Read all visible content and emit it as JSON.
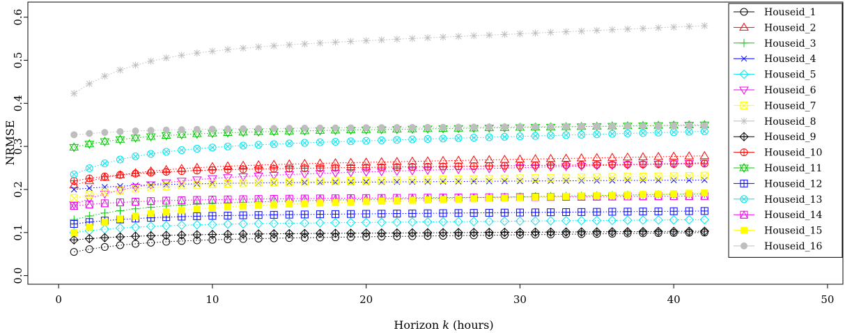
{
  "chart_data": {
    "type": "line",
    "xlabel_prefix": "Horizon ",
    "xlabel_var": "k",
    "xlabel_suffix": " (hours)",
    "ylabel": "NRMSE",
    "xlim": [
      -2,
      51
    ],
    "ylim": [
      -0.02,
      0.635
    ],
    "xticks": [
      0,
      10,
      20,
      30,
      40,
      50
    ],
    "yticks": [
      0.0,
      0.1,
      0.2,
      0.3,
      0.4,
      0.5,
      0.6
    ],
    "ytick_labels": [
      "0.0",
      "0.1",
      "0.2",
      "0.3",
      "0.4",
      "0.5",
      "0.6"
    ],
    "grid": false,
    "legend_position": "top-right",
    "x_start": 1,
    "x_end": 42,
    "series": [
      {
        "name": "Houseid_1",
        "color": "#000000",
        "marker": "circle",
        "start": 0.055,
        "end": 0.1
      },
      {
        "name": "Houseid_2",
        "color": "#ff0000",
        "marker": "triangle-up",
        "start": 0.21,
        "end": 0.278
      },
      {
        "name": "Houseid_3",
        "color": "#00cc00",
        "marker": "plus",
        "start": 0.13,
        "end": 0.19
      },
      {
        "name": "Houseid_4",
        "color": "#0000ff",
        "marker": "x",
        "start": 0.2,
        "end": 0.222
      },
      {
        "name": "Houseid_5",
        "color": "#00e5ee",
        "marker": "diamond",
        "start": 0.1,
        "end": 0.13
      },
      {
        "name": "Houseid_6",
        "color": "#ee00ee",
        "marker": "triangle-down",
        "start": 0.165,
        "end": 0.262
      },
      {
        "name": "Houseid_7",
        "color": "#ffff00",
        "marker": "square-x",
        "start": 0.18,
        "end": 0.232
      },
      {
        "name": "Houseid_8",
        "color": "#bebebe",
        "marker": "asterisk",
        "start": 0.423,
        "end": 0.58
      },
      {
        "name": "Houseid_9",
        "color": "#000000",
        "marker": "diamond-plus",
        "start": 0.083,
        "end": 0.103
      },
      {
        "name": "Houseid_10",
        "color": "#ff0000",
        "marker": "circle-plus",
        "start": 0.22,
        "end": 0.26
      },
      {
        "name": "Houseid_11",
        "color": "#00cc00",
        "marker": "star-david",
        "start": 0.298,
        "end": 0.35
      },
      {
        "name": "Houseid_12",
        "color": "#0000ff",
        "marker": "square-plus",
        "start": 0.12,
        "end": 0.15
      },
      {
        "name": "Houseid_13",
        "color": "#00e5ee",
        "marker": "circle-x",
        "start": 0.235,
        "end": 0.335
      },
      {
        "name": "Houseid_14",
        "color": "#ee00ee",
        "marker": "square-triangle",
        "start": 0.162,
        "end": 0.185
      },
      {
        "name": "Houseid_15",
        "color": "#ffff00",
        "marker": "square-filled",
        "start": 0.1,
        "end": 0.192
      },
      {
        "name": "Houseid_16",
        "color": "#bebebe",
        "marker": "circle-filled",
        "start": 0.327,
        "end": 0.348
      }
    ]
  }
}
